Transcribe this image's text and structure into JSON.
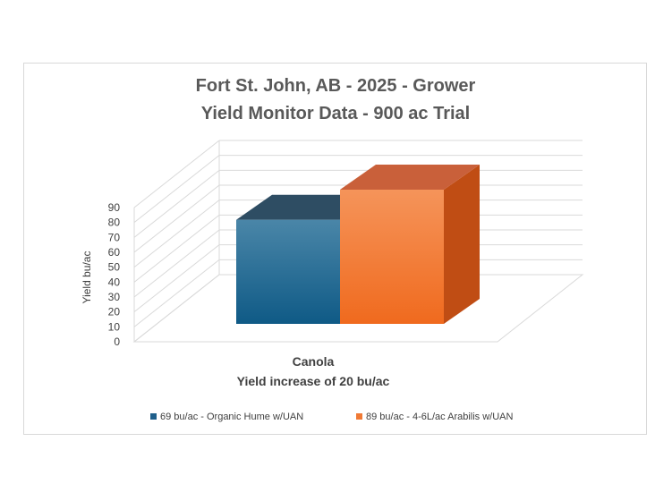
{
  "chart_data": {
    "type": "bar",
    "title": "Fort St. John, AB - 2025 - Grower Yield Monitor Data - 900 ac Trial",
    "title_lines": [
      "Fort St. John, AB - 2025 - Grower",
      "Yield Monitor Data - 900 ac Trial"
    ],
    "categories": [
      "Canola"
    ],
    "xlabel": "Yield increase of 20 bu/ac",
    "ylabel": "Yield bu/ac",
    "ylim": [
      0,
      90
    ],
    "yticks": [
      0,
      10,
      20,
      30,
      40,
      50,
      60,
      70,
      80,
      90
    ],
    "grid": true,
    "legend_position": "bottom",
    "series": [
      {
        "name": "69 bu/ac - Organic Hume w/UAN",
        "values": [
          69
        ],
        "color": "#1f5f8b"
      },
      {
        "name": "89 bu/ac - 4-6L/ac Arabilis w/UAN",
        "values": [
          89
        ],
        "color": "#f07a35"
      }
    ]
  }
}
